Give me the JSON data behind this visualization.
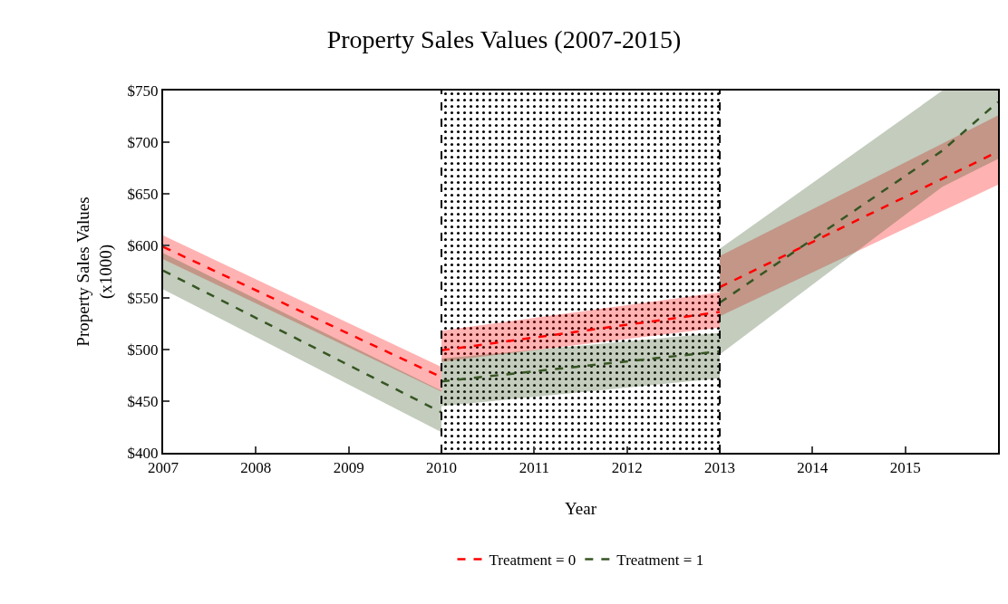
{
  "chart_data": {
    "type": "line",
    "title": "Property Sales Values (2007-2015)",
    "xlabel": "Year",
    "ylabel": "Property Sales Values\n(x1000)",
    "xlim": [
      2007,
      2016
    ],
    "xticks": [
      2007,
      2008,
      2009,
      2010,
      2011,
      2012,
      2013,
      2014,
      2015
    ],
    "ylim": [
      400,
      750
    ],
    "yticks": [
      {
        "value": 400,
        "label": "$400"
      },
      {
        "value": 450,
        "label": "$450"
      },
      {
        "value": 500,
        "label": "$500"
      },
      {
        "value": 550,
        "label": "$550"
      },
      {
        "value": 600,
        "label": "$600"
      },
      {
        "value": 650,
        "label": "$650"
      },
      {
        "value": 700,
        "label": "$700"
      },
      {
        "value": 750,
        "label": "$750"
      }
    ],
    "grid": false,
    "legend": "bottom",
    "line_style": "dashed",
    "marker": "none",
    "series": [
      {
        "name": "Treatment = 0",
        "color": "#ff0000",
        "x": [
          2007,
          2010,
          null,
          2010,
          2013,
          null,
          2013,
          2016
        ],
        "values": [
          599,
          473,
          null,
          499,
          536,
          null,
          560,
          691
        ],
        "lower": [
          587,
          459,
          null,
          488,
          521,
          null,
          532,
          659
        ],
        "upper": [
          610,
          483,
          null,
          518,
          555,
          null,
          590,
          726
        ]
      },
      {
        "name": "Treatment = 1",
        "color": "#375623",
        "x": [
          2007,
          2010,
          null,
          2010,
          2013,
          null,
          2013,
          2015.4,
          2016
        ],
        "values": [
          576,
          439,
          null,
          469,
          498,
          null,
          545,
          692,
          739
        ],
        "lower": [
          558,
          420,
          null,
          445,
          472,
          null,
          495,
          657,
          684
        ],
        "upper": [
          593,
          460,
          null,
          491,
          516,
          null,
          597,
          750,
          750
        ]
      }
    ],
    "bands": [
      {
        "axis": "x",
        "from": 2010,
        "to": 2013,
        "color": "#000000"
      }
    ],
    "ref_lines": [
      {
        "axis": "x",
        "value": 2010,
        "color": "#000000",
        "line_style": "dashed"
      },
      {
        "axis": "x",
        "value": 2013,
        "color": "#000000",
        "line_style": "dashed"
      }
    ]
  }
}
